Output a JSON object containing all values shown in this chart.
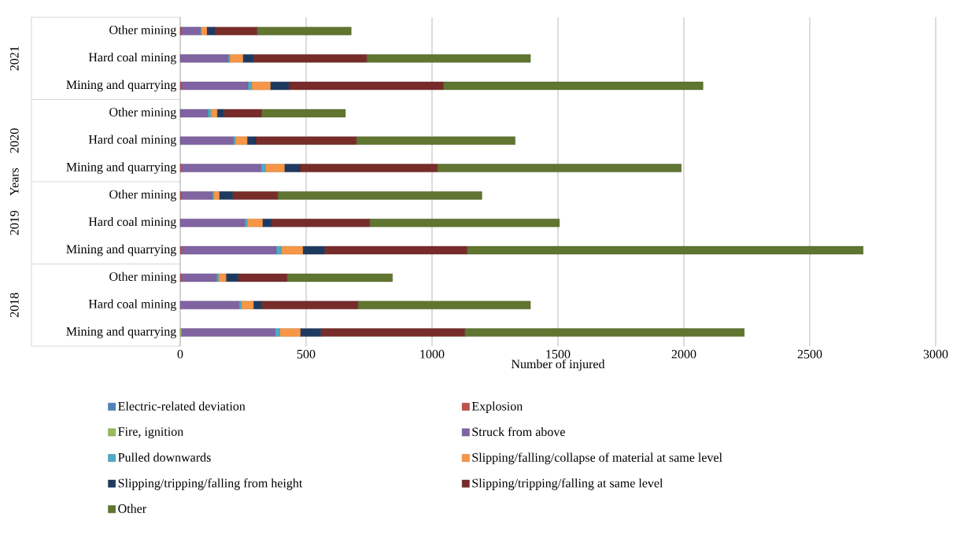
{
  "chart_data": {
    "type": "bar",
    "orientation": "horizontal",
    "stacked": true,
    "xlabel": "Number of injured",
    "ylabel": "Years",
    "categories": [
      "Other mining",
      "Hard coal mining",
      "Mining and quarrying",
      "Other mining",
      "Hard coal mining",
      "Mining and quarrying",
      "Other mining",
      "Hard coal mining",
      "Mining and quarrying",
      "Other mining",
      "Hard coal mining",
      "Mining and quarrying"
    ],
    "annotations": [
      "2021",
      "2020",
      "2019",
      "2018"
    ],
    "series": [
      {
        "name": "Electric-related deviation",
        "color": "#4f81bd",
        "values": [
          0,
          0,
          0,
          0,
          0,
          0,
          0,
          0,
          0,
          0,
          0,
          0
        ]
      },
      {
        "name": "Explosion",
        "color": "#c0504d",
        "values": [
          3,
          0,
          4,
          0,
          0,
          5,
          3,
          0,
          5,
          4,
          0,
          0
        ]
      },
      {
        "name": "Fire, ignition",
        "color": "#9bbb59",
        "values": [
          0,
          0,
          0,
          0,
          0,
          0,
          0,
          0,
          0,
          0,
          0,
          5
        ]
      },
      {
        "name": "Struck from above",
        "color": "#8064a2",
        "values": [
          76,
          190,
          265,
          109,
          211,
          316,
          124,
          256,
          376,
          140,
          233,
          372
        ]
      },
      {
        "name": "Pulled downwards",
        "color": "#4bacc6",
        "values": [
          4,
          6,
          14,
          12,
          7,
          18,
          5,
          9,
          20,
          8,
          10,
          18
        ]
      },
      {
        "name": "Slipping/falling/collapse of material at same level",
        "color": "#f79646",
        "values": [
          23,
          53,
          75,
          26,
          48,
          75,
          23,
          62,
          86,
          30,
          48,
          82
        ]
      },
      {
        "name": "Slipping/tripping/falling from height",
        "color": "#1f3a60",
        "values": [
          32,
          43,
          73,
          27,
          34,
          61,
          53,
          35,
          86,
          48,
          33,
          81
        ]
      },
      {
        "name": "Slipping/tripping/falling at same level",
        "color": "#772c2a",
        "values": [
          167,
          448,
          614,
          148,
          399,
          546,
          179,
          390,
          566,
          194,
          381,
          572
        ]
      },
      {
        "name": "Other",
        "color": "#5f7530",
        "values": [
          374,
          651,
          1031,
          334,
          631,
          969,
          811,
          754,
          1573,
          419,
          686,
          1110
        ]
      }
    ],
    "xlim": [
      0,
      3000
    ],
    "xticks": [
      0,
      500,
      1000,
      1500,
      2000,
      2500,
      3000
    ],
    "grid": "x",
    "legend": "bottom"
  }
}
